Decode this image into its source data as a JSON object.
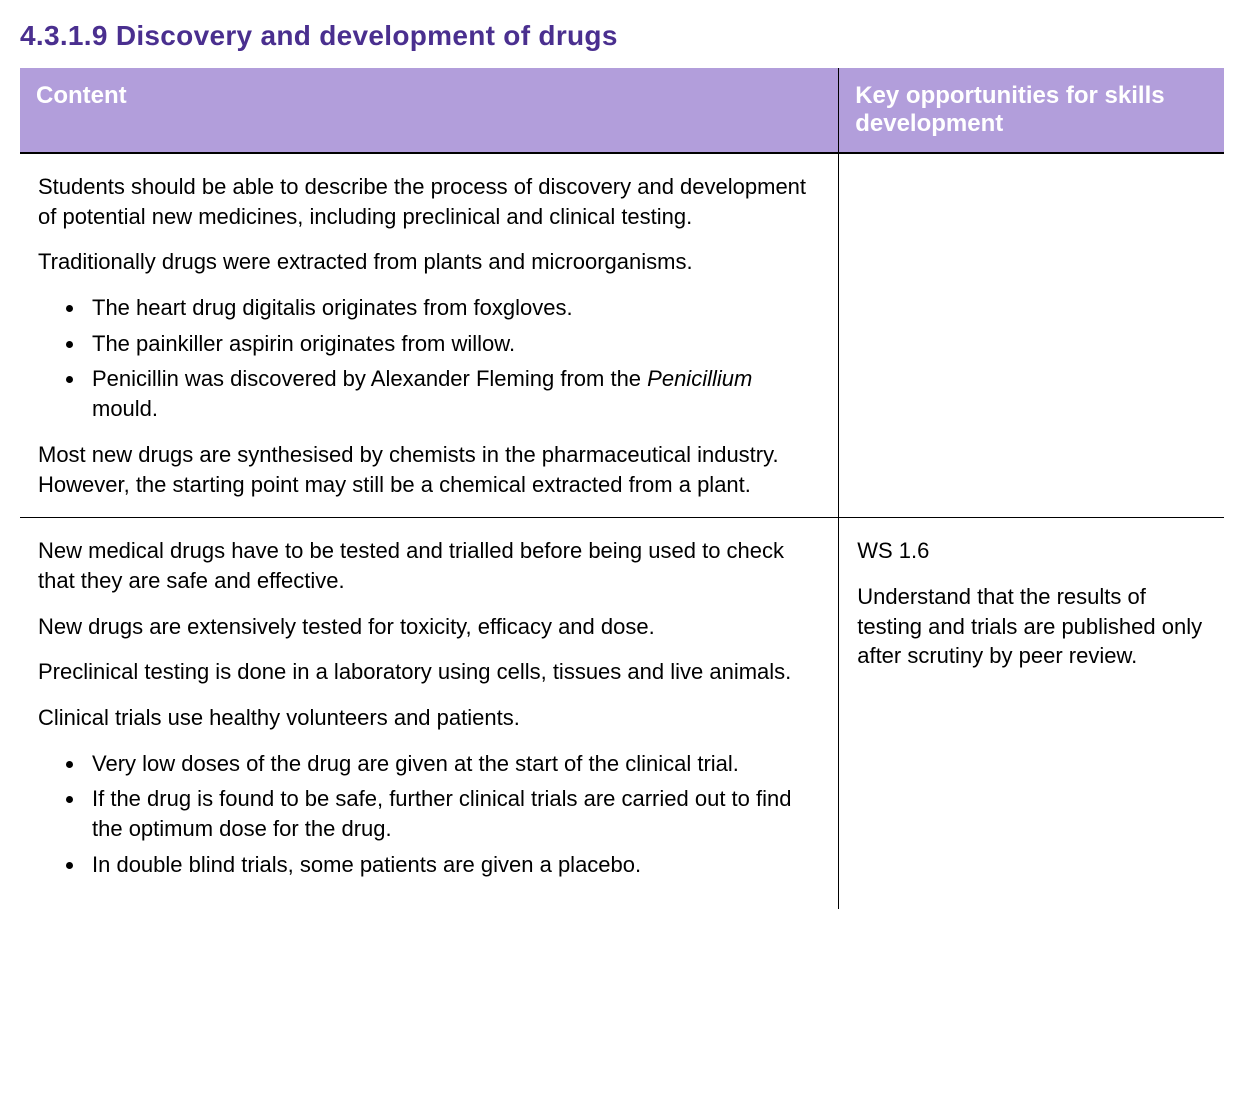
{
  "heading": {
    "number": "4.3.1.9",
    "title": "Discovery and development of drugs",
    "color": "#4a2f8f",
    "font_family": "Arial, sans-serif",
    "font_size_pt": 21
  },
  "table": {
    "header_bg": "#b29edb",
    "header_text_color": "#ffffff",
    "border_color": "#000000",
    "columns": [
      {
        "label": "Content",
        "width_pct": 68
      },
      {
        "label": "Key opportunities for skills development",
        "width_pct": 32
      }
    ],
    "body_font_size_pt": 16,
    "rows": [
      {
        "content": {
          "paragraphs_top": [
            "Students should be able to describe the process of discovery and development of potential new medicines, including preclinical and clinical testing.",
            "Traditionally drugs were extracted from plants and microorganisms."
          ],
          "bullets": [
            {
              "text": "The heart drug digitalis originates from foxgloves."
            },
            {
              "text": "The painkiller aspirin originates from willow."
            },
            {
              "prefix": "Penicillin was discovered by Alexander Fleming from the ",
              "italic": "Penicillium",
              "suffix": " mould."
            }
          ],
          "paragraphs_bottom": [
            "Most new drugs are synthesised by chemists in the pharmaceutical industry. However, the starting point may still be a chemical extracted from a plant."
          ]
        },
        "skills": {
          "paragraphs": []
        }
      },
      {
        "content": {
          "paragraphs_top": [
            "New medical drugs have to be tested and trialled before being used to check that they are safe and effective.",
            "New drugs are extensively tested for toxicity, efficacy and dose.",
            "Preclinical testing is done in a laboratory using cells, tissues and live animals.",
            "Clinical trials use healthy volunteers and patients."
          ],
          "bullets": [
            {
              "text": "Very low doses of the drug are given at the start of the clinical trial."
            },
            {
              "text": "If the drug is found to be safe, further clinical trials are carried out to find the optimum dose for the drug."
            },
            {
              "text": "In double blind trials, some patients are given a placebo."
            }
          ],
          "paragraphs_bottom": []
        },
        "skills": {
          "paragraphs": [
            "WS 1.6",
            "Understand that the results of testing and trials are published only after scrutiny by peer review."
          ]
        }
      }
    ]
  }
}
